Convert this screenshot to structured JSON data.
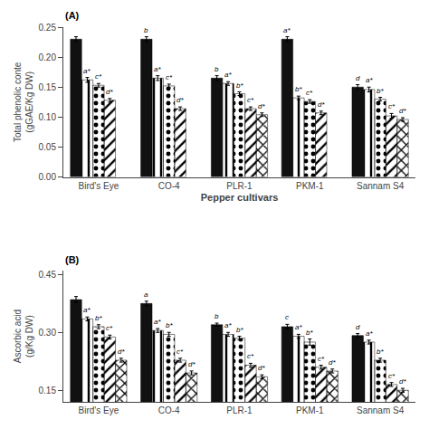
{
  "chart_data": [
    {
      "type": "bar",
      "title": "(A)",
      "ylabel": "Total phenolic conte\n(gGAE/Kg DW)",
      "xlabel": "Pepper cultivars",
      "categories": [
        "Bird's Eye",
        "CO-4",
        "PLR-1",
        "PKM-1",
        "Sannam S4"
      ],
      "ylim": [
        0.0,
        0.25
      ],
      "yticks": [
        {
          "value": 0.0,
          "label": "0.00"
        },
        0.05,
        {
          "value": 0.1,
          "label": "0.10"
        },
        0.15,
        {
          "value": 0.2,
          "label": "0.20"
        },
        0.25
      ],
      "grid": false,
      "series": [
        {
          "color": "#111111",
          "values": [
            0.23,
            0.23,
            0.165,
            0.23,
            0.15
          ],
          "errors": [
            0.004,
            0.004,
            0.004,
            0.004,
            0.004
          ],
          "annotations": [
            null,
            "b",
            "b",
            "a*",
            "d"
          ]
        },
        {
          "color": "#888888",
          "values": [
            0.162,
            0.165,
            0.156,
            0.132,
            0.146
          ],
          "errors": [
            0.004,
            0.004,
            0.003,
            0.003,
            0.004
          ],
          "annotations": [
            "a*",
            "a*",
            "a*",
            "b*",
            "a*"
          ]
        },
        {
          "color": "#aaaaaa",
          "values": [
            0.153,
            0.152,
            0.139,
            0.126,
            0.13
          ],
          "errors": [
            0.003,
            0.003,
            0.003,
            0.003,
            0.003
          ],
          "annotations": [
            "c*",
            "c*",
            "b*",
            "c*",
            "b*"
          ]
        },
        {
          "color": "#555555",
          "values": [
            0.128,
            0.114,
            0.114,
            0.107,
            0.102
          ],
          "errors": [
            0.003,
            0.003,
            0.003,
            0.003,
            0.004
          ],
          "annotations": [
            "d*",
            "d*",
            "c*",
            "d*",
            "c*"
          ]
        },
        {
          "color": "#888888",
          "values": [
            null,
            null,
            0.104,
            null,
            0.096
          ],
          "errors": [
            null,
            null,
            0.003,
            null,
            0.003
          ],
          "annotations": [
            null,
            null,
            "d*",
            null,
            "d*"
          ]
        }
      ]
    },
    {
      "type": "bar",
      "title": "(B)",
      "ylabel": "Ascorbic acid\n(g/Kg DW)",
      "categories": [
        "Bird's Eye",
        "CO-4",
        "PLR-1",
        "PKM-1",
        "Sannam S4"
      ],
      "ylim": [
        0.12,
        0.46
      ],
      "yticks": [
        0.15,
        {
          "value": 0.3,
          "label": "0.30"
        },
        0.45
      ],
      "grid": false,
      "series": [
        {
          "color": "#111111",
          "values": [
            0.385,
            0.375,
            0.32,
            0.315,
            0.292
          ],
          "errors": [
            0.008,
            0.006,
            0.004,
            0.006,
            0.005
          ],
          "annotations": [
            null,
            "a",
            "b",
            "c",
            "d"
          ]
        },
        {
          "color": "#888888",
          "values": [
            0.335,
            0.305,
            0.295,
            0.29,
            0.275
          ],
          "errors": [
            0.005,
            0.005,
            0.005,
            0.005,
            0.005
          ],
          "annotations": [
            "a*",
            "a*",
            "a*",
            "a*",
            "a*"
          ]
        },
        {
          "color": "#aaaaaa",
          "values": [
            0.315,
            0.295,
            0.285,
            0.275,
            0.228
          ],
          "errors": [
            0.005,
            0.005,
            0.005,
            0.008,
            0.005
          ],
          "annotations": [
            "b*",
            "b*",
            "b*",
            "b*",
            "b*"
          ]
        },
        {
          "color": "#555555",
          "values": [
            0.288,
            0.228,
            0.215,
            0.21,
            0.165
          ],
          "errors": [
            0.005,
            0.005,
            0.005,
            0.005,
            0.005
          ],
          "annotations": [
            "c*",
            "c*",
            "c*",
            "c*",
            "c*"
          ]
        },
        {
          "color": "#888888",
          "values": [
            0.228,
            0.195,
            0.185,
            0.2,
            0.15
          ],
          "errors": [
            0.005,
            0.005,
            0.005,
            0.005,
            0.005
          ],
          "annotations": [
            "d*",
            "d*",
            "d*",
            "d*",
            "d*"
          ]
        }
      ]
    }
  ]
}
